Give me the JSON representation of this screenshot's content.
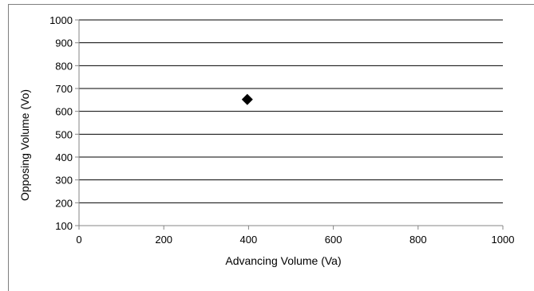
{
  "chart_data": {
    "type": "scatter",
    "title": "",
    "xlabel": "Advancing Volume (Va)",
    "ylabel": "Opposing Volume (Vo)",
    "xlim": [
      0,
      1000
    ],
    "ylim": [
      100,
      1000
    ],
    "xticks": [
      "0",
      "200",
      "400",
      "600",
      "800",
      "1000"
    ],
    "yticks": [
      "100",
      "200",
      "300",
      "400",
      "500",
      "600",
      "700",
      "800",
      "900",
      "1000"
    ],
    "grid": "horizontal",
    "marker": "diamond",
    "colors": {
      "marker": "#000000",
      "grid": "#000000",
      "axis": "#868686",
      "frame": "#7f7f7f"
    },
    "series": [
      {
        "points": [
          {
            "x": 397,
            "y": 652
          }
        ]
      }
    ]
  }
}
